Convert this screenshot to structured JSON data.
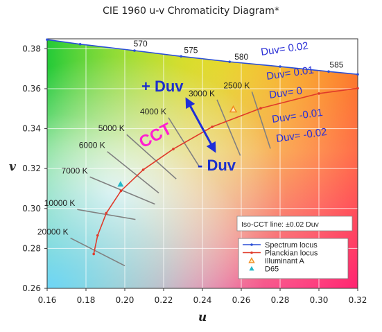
{
  "chart_data": {
    "type": "line",
    "title": "CIE 1960 u-v Chromaticity Diagram*",
    "xlabel": "u",
    "ylabel": "v",
    "xlim": [
      0.16,
      0.32
    ],
    "ylim": [
      0.26,
      0.385
    ],
    "x_ticks": [
      "0.16",
      "0.18",
      "0.20",
      "0.22",
      "0.24",
      "0.26",
      "0.28",
      "0.30",
      "0.32"
    ],
    "y_ticks": [
      "0.26",
      "0.28",
      "0.30",
      "0.32",
      "0.34",
      "0.36",
      "0.38"
    ],
    "grid": true,
    "legend_position": "bottom-right",
    "legend": [
      {
        "label": "Spectrum locus",
        "marker": "line-dot",
        "color": "#2b4fd6"
      },
      {
        "label": "Planckian locus",
        "marker": "line-dot",
        "color": "#e03a2a"
      },
      {
        "label": "Illuminant A",
        "marker": "triangle-open",
        "color": "#f08a1c"
      },
      {
        "label": "D65",
        "marker": "triangle-filled",
        "color": "#24b8c8"
      }
    ],
    "series": [
      {
        "name": "Spectrum locus",
        "color": "#2b4fd6",
        "points": [
          [
            0.16,
            0.3846
          ],
          [
            0.177,
            0.3823
          ],
          [
            0.205,
            0.3791
          ],
          [
            0.229,
            0.3762
          ],
          [
            0.254,
            0.3735
          ],
          [
            0.28,
            0.3711
          ],
          [
            0.305,
            0.3686
          ],
          [
            0.32,
            0.3672
          ]
        ],
        "wavelength_labels": [
          {
            "label": "570",
            "u": 0.2045,
            "v": 0.3812
          },
          {
            "label": "575",
            "u": 0.2305,
            "v": 0.3778
          },
          {
            "label": "580",
            "u": 0.2565,
            "v": 0.3745
          },
          {
            "label": "585",
            "u": 0.3055,
            "v": 0.3706
          }
        ]
      },
      {
        "name": "Planckian locus",
        "color": "#e03a2a",
        "points": [
          [
            0.184,
            0.2772
          ],
          [
            0.186,
            0.2865
          ],
          [
            0.1905,
            0.2977
          ],
          [
            0.198,
            0.3088
          ],
          [
            0.2095,
            0.3194
          ],
          [
            0.225,
            0.3298
          ],
          [
            0.245,
            0.3409
          ],
          [
            0.27,
            0.3502
          ],
          [
            0.3,
            0.3576
          ],
          [
            0.32,
            0.3602
          ]
        ]
      }
    ],
    "points": [
      {
        "name": "Illuminant A",
        "u": 0.2559,
        "v": 0.3496,
        "color": "#f08a1c"
      },
      {
        "name": "D65",
        "u": 0.1978,
        "v": 0.3122,
        "color": "#24b8c8"
      }
    ],
    "iso_cct_lines": [
      {
        "label": "20000 K",
        "u1": 0.172,
        "v1": 0.2852,
        "u2": 0.2,
        "v2": 0.2713
      },
      {
        "label": "10000 K",
        "u1": 0.1755,
        "v1": 0.2995,
        "u2": 0.2055,
        "v2": 0.2945
      },
      {
        "label": "7000 K",
        "u1": 0.182,
        "v1": 0.3158,
        "u2": 0.2155,
        "v2": 0.3022
      },
      {
        "label": "6000 K",
        "u1": 0.191,
        "v1": 0.3285,
        "u2": 0.2175,
        "v2": 0.3078
      },
      {
        "label": "5000 K",
        "u1": 0.201,
        "v1": 0.337,
        "u2": 0.2265,
        "v2": 0.3148
      },
      {
        "label": "4000 K",
        "u1": 0.2225,
        "v1": 0.3455,
        "u2": 0.2385,
        "v2": 0.3208
      },
      {
        "label": "3000 K",
        "u1": 0.2475,
        "v1": 0.3545,
        "u2": 0.2595,
        "v2": 0.3265
      },
      {
        "label": "2500 K",
        "u1": 0.2655,
        "v1": 0.3585,
        "u2": 0.275,
        "v2": 0.33
      }
    ],
    "annotations": {
      "plus_duv": "+ Duv",
      "minus_duv": "- Duv",
      "cct": "CCT",
      "iso_cct_note": "Iso-CCT line: ±0.02 Duv",
      "duv_levels": [
        "Duv= 0.02",
        "Duv= 0.01",
        "Duv= 0",
        "Duv= -0.01",
        "Duv= -0.02"
      ]
    },
    "colors": {
      "plus_minus_duv": "#1b2fcc",
      "cct": "#ff1fd0",
      "duv_levels": "#2a2fd6",
      "arrow": "#1e2fd8",
      "iso_cct_line": "#808080"
    }
  }
}
